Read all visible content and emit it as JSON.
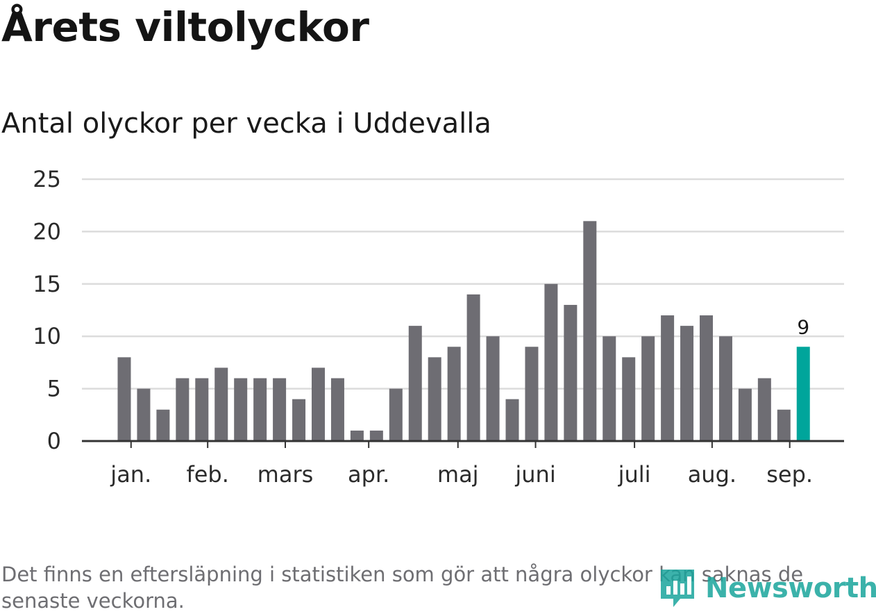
{
  "title": "Årets viltolyckor",
  "subtitle": "Antal olyckor per vecka i Uddevalla",
  "footnote": "Det finns en eftersläpning i statistiken som gör att några olyckor kan saknas de senaste veckorna.",
  "logo": {
    "text": "Newsworthy",
    "icon": "newsworthy-logo-icon",
    "color": "#1aa59c"
  },
  "chart_data": {
    "type": "bar",
    "title": "Årets viltolyckor",
    "subtitle": "Antal olyckor per vecka i Uddevalla",
    "values": [
      8,
      5,
      3,
      6,
      6,
      7,
      6,
      6,
      6,
      4,
      7,
      6,
      1,
      1,
      5,
      11,
      8,
      9,
      14,
      10,
      4,
      9,
      15,
      13,
      21,
      10,
      8,
      10,
      12,
      11,
      12,
      10,
      5,
      6,
      3,
      9
    ],
    "highlight_index": 35,
    "highlight_label": "9",
    "ylim": [
      0,
      25
    ],
    "yticks": [
      0,
      5,
      10,
      15,
      20,
      25
    ],
    "month_labels": [
      {
        "label": "jan.",
        "week": 0.35
      },
      {
        "label": "feb.",
        "week": 4.3
      },
      {
        "label": "mars",
        "week": 8.3
      },
      {
        "label": "apr.",
        "week": 12.6
      },
      {
        "label": "maj",
        "week": 17.2
      },
      {
        "label": "juni",
        "week": 21.2
      },
      {
        "label": "juli",
        "week": 26.3
      },
      {
        "label": "aug.",
        "week": 30.3
      },
      {
        "label": "sep.",
        "week": 34.3
      }
    ],
    "grid": true,
    "colors": {
      "bar": "#6e6d73",
      "highlight": "#00a59b",
      "grid": "#dcdcdc",
      "axis": "#333333"
    }
  }
}
